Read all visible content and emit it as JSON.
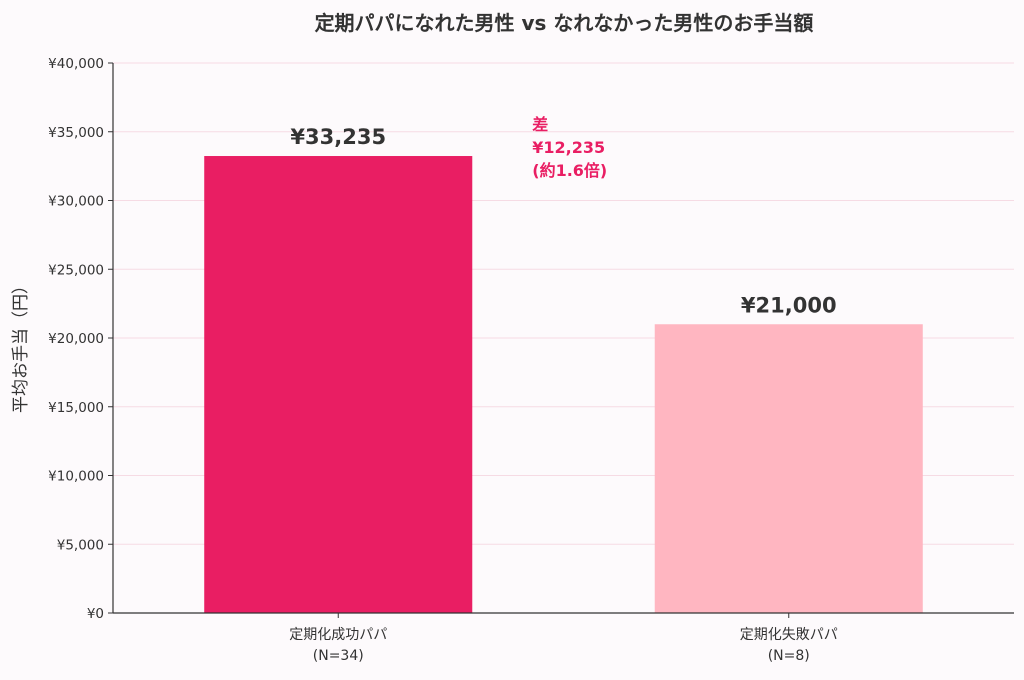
{
  "chart_data": {
    "type": "bar",
    "title": "定期パパになれた男性 vs なれなかった男性のお手当額",
    "xlabel": "",
    "ylabel": "平均お手当（円）",
    "ylim": [
      0,
      40000
    ],
    "yticks": [
      {
        "value": 0,
        "label": "¥0"
      },
      {
        "value": 5000,
        "label": "¥5,000"
      },
      {
        "value": 10000,
        "label": "¥10,000"
      },
      {
        "value": 15000,
        "label": "¥15,000"
      },
      {
        "value": 20000,
        "label": "¥20,000"
      },
      {
        "value": 25000,
        "label": "¥25,000"
      },
      {
        "value": 30000,
        "label": "¥30,000"
      },
      {
        "value": 35000,
        "label": "¥35,000"
      },
      {
        "value": 40000,
        "label": "¥40,000"
      }
    ],
    "grid": true,
    "categories": [
      {
        "label": "定期化成功パパ",
        "sublabel": "(N=34)"
      },
      {
        "label": "定期化失敗パパ",
        "sublabel": "(N=8)"
      }
    ],
    "values": [
      33235,
      21000
    ],
    "value_labels": [
      "¥33,235",
      "¥21,000"
    ],
    "colors": [
      "#e91e63",
      "#ffb6c1"
    ],
    "annotation": {
      "lines": [
        "差",
        "¥12,235",
        "(約1.6倍)"
      ],
      "color": "#e91e63"
    }
  }
}
